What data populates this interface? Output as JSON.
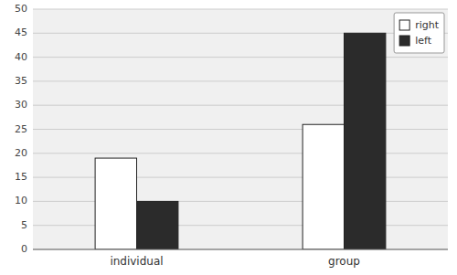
{
  "chart_data": {
    "type": "bar",
    "categories": [
      "individual",
      "group"
    ],
    "series": [
      {
        "name": "right",
        "color": "#ffffff",
        "values": [
          19,
          26
        ]
      },
      {
        "name": "left",
        "color": "#2b2b2b",
        "values": [
          10,
          45
        ]
      }
    ],
    "ylim": [
      0,
      50
    ],
    "yticks": [
      0,
      5,
      10,
      15,
      20,
      25,
      30,
      35,
      40,
      45,
      50
    ],
    "grid": true,
    "legend": "upper right"
  }
}
